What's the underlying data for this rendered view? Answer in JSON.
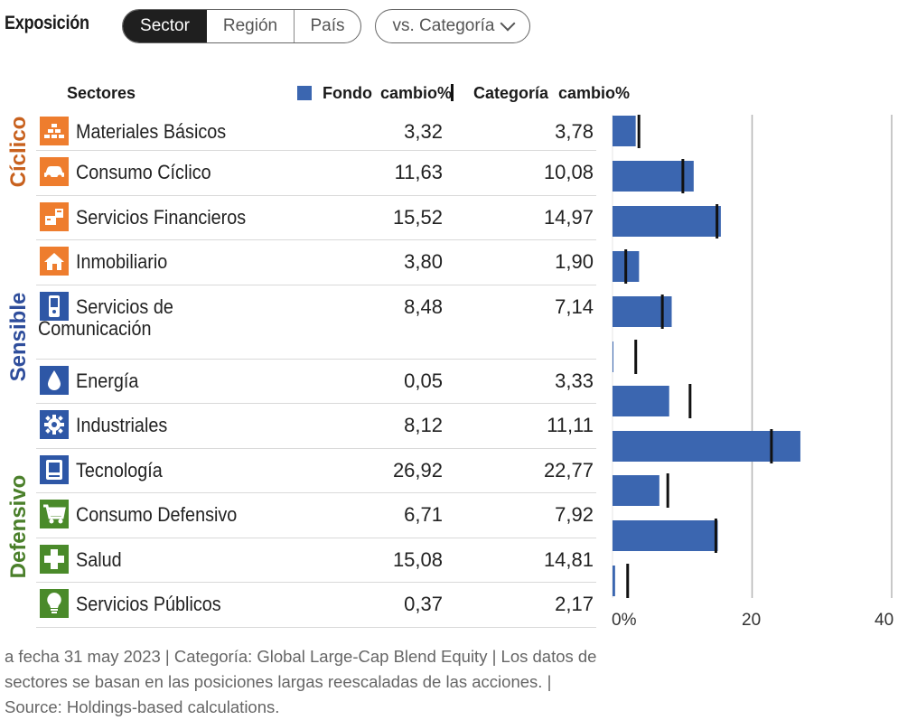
{
  "header": {
    "title": "Exposición",
    "tabs": [
      {
        "label": "Sector",
        "active": true
      },
      {
        "label": "Región",
        "active": false
      },
      {
        "label": "País",
        "active": false
      }
    ],
    "compare_label": "vs. Categoría"
  },
  "table": {
    "col_sectors": "Sectores",
    "col_fund": "Fondo",
    "col_fund_change": "cambio%",
    "col_category": "Categoría",
    "col_category_change": "cambio%"
  },
  "groups": [
    {
      "label": "Cíclico",
      "color": "#c8611e"
    },
    {
      "label": "Sensible",
      "color": "#2e4d9b"
    },
    {
      "label": "Defensivo",
      "color": "#4a7f2a"
    }
  ],
  "rows": [
    {
      "label": "Materiales Básicos",
      "label2": "",
      "fund": "3,32",
      "category": "3,78",
      "icon": "basic-materials-icon",
      "color": "#ee7d2e"
    },
    {
      "label": "Consumo Cíclico",
      "label2": "",
      "fund": "11,63",
      "category": "10,08",
      "icon": "car-icon",
      "color": "#ee7d2e"
    },
    {
      "label": "Servicios Financieros",
      "label2": "",
      "fund": "15,52",
      "category": "14,97",
      "icon": "financial-icon",
      "color": "#ee7d2e"
    },
    {
      "label": "Inmobiliario",
      "label2": "",
      "fund": "3,80",
      "category": "1,90",
      "icon": "house-icon",
      "color": "#ee7d2e"
    },
    {
      "label": "Servicios de",
      "label2": "Comunicación",
      "fund": "8,48",
      "category": "7,14",
      "icon": "phone-icon",
      "color": "#2e57a6"
    },
    {
      "label": "Energía",
      "label2": "",
      "fund": "0,05",
      "category": "3,33",
      "icon": "drop-icon",
      "color": "#2e57a6"
    },
    {
      "label": "Industriales",
      "label2": "",
      "fund": "8,12",
      "category": "11,11",
      "icon": "gear-icon",
      "color": "#2e57a6"
    },
    {
      "label": "Tecnología",
      "label2": "",
      "fund": "26,92",
      "category": "22,77",
      "icon": "computer-icon",
      "color": "#2e57a6"
    },
    {
      "label": "Consumo Defensivo",
      "label2": "",
      "fund": "6,71",
      "category": "7,92",
      "icon": "cart-icon",
      "color": "#4a8a2a"
    },
    {
      "label": "Salud",
      "label2": "",
      "fund": "15,08",
      "category": "14,81",
      "icon": "cross-icon",
      "color": "#4a8a2a"
    },
    {
      "label": "Servicios Públicos",
      "label2": "",
      "fund": "0,37",
      "category": "2,17",
      "icon": "bulb-icon",
      "color": "#4a8a2a"
    }
  ],
  "chart_data": {
    "type": "bar",
    "orientation": "horizontal",
    "categories": [
      "Materiales Básicos",
      "Consumo Cíclico",
      "Servicios Financieros",
      "Inmobiliario",
      "Servicios de Comunicación",
      "Energía",
      "Industriales",
      "Tecnología",
      "Consumo Defensivo",
      "Salud",
      "Servicios Públicos"
    ],
    "series": [
      {
        "name": "Fondo",
        "mark": "bar",
        "color": "#3b66b0",
        "values": [
          3.32,
          11.63,
          15.52,
          3.8,
          8.48,
          0.05,
          8.12,
          26.92,
          6.71,
          15.08,
          0.37
        ]
      },
      {
        "name": "Categoría",
        "mark": "tick",
        "color": "#111111",
        "values": [
          3.78,
          10.08,
          14.97,
          1.9,
          7.14,
          3.33,
          11.11,
          22.77,
          7.92,
          14.81,
          2.17
        ]
      }
    ],
    "xlim": [
      0,
      40
    ],
    "xticks": [
      "0%",
      "20",
      "40"
    ],
    "grid": true
  },
  "footnote": "a fecha 31 may 2023 | Categoría: Global Large-Cap Blend Equity | Los datos de sectores se basan en las posiciones largas reescaladas de las acciones. | Source: Holdings-based calculations."
}
